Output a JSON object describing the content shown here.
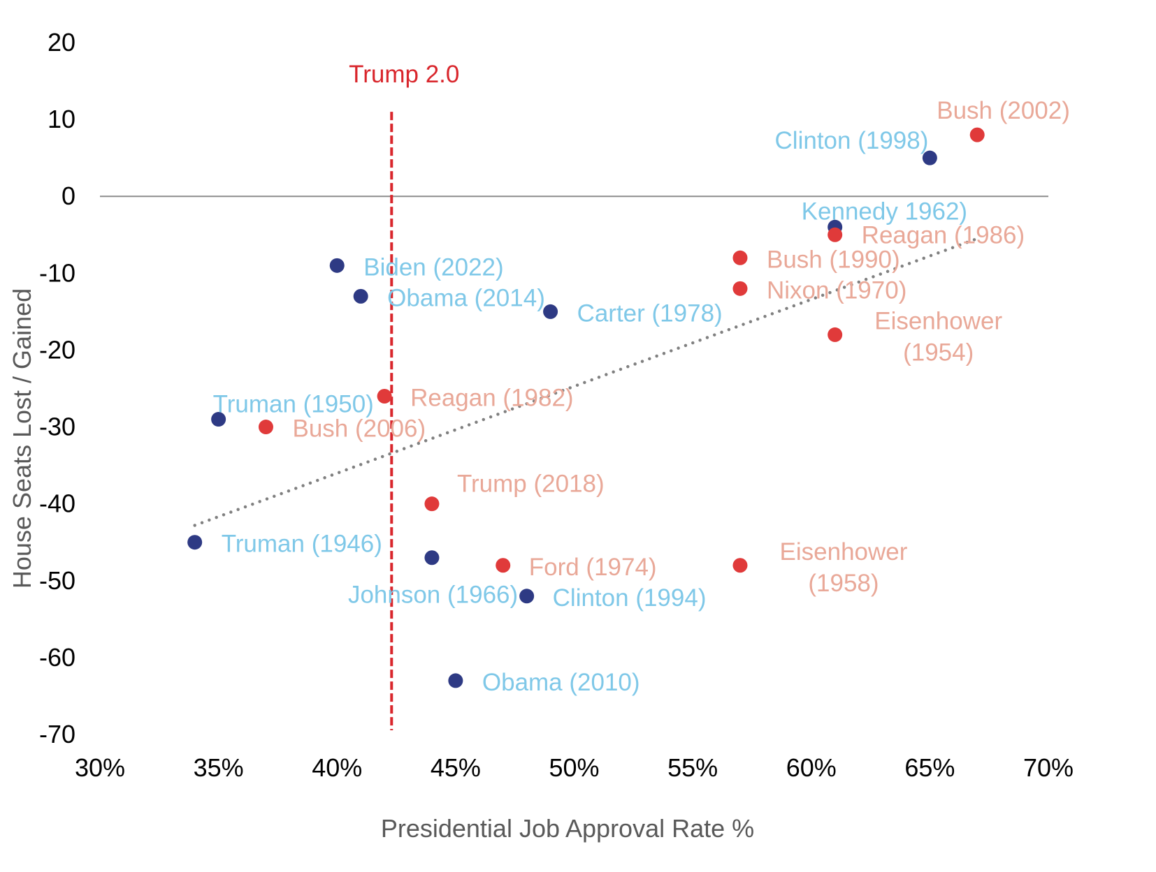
{
  "chart_data": {
    "type": "scatter",
    "title": "",
    "xlabel": "Presidential Job Approval Rate %",
    "ylabel": "House Seats Lost / Gained",
    "xlim": [
      0.3,
      0.7
    ],
    "ylim": [
      -70,
      20
    ],
    "x_ticks": [
      "30%",
      "35%",
      "40%",
      "45%",
      "50%",
      "55%",
      "60%",
      "65%",
      "70%"
    ],
    "y_ticks": [
      "20",
      "10",
      "0",
      "-10",
      "-20",
      "-30",
      "-40",
      "-50",
      "-60",
      "-70"
    ],
    "grid": false,
    "legend": "none",
    "colors": {
      "democrat_point": "#2e3a84",
      "democrat_label": "#7fc8e8",
      "republican_point": "#e03a3a",
      "republican_label": "#e9a898",
      "reference_line": "#d9262c",
      "trendline": "#808080",
      "zero_line": "#8c8c8c"
    },
    "series": [
      {
        "party": "democrat",
        "points": [
          {
            "label": "Clinton (1998)",
            "x": 0.65,
            "y": 5
          },
          {
            "label": "Kennedy 1962)",
            "x": 0.61,
            "y": -4
          },
          {
            "label": "Biden (2022)",
            "x": 0.4,
            "y": -9
          },
          {
            "label": "Obama (2014)",
            "x": 0.41,
            "y": -13
          },
          {
            "label": "Carter (1978)",
            "x": 0.49,
            "y": -15
          },
          {
            "label": "Truman (1950)",
            "x": 0.35,
            "y": -29
          },
          {
            "label": "Truman (1946)",
            "x": 0.34,
            "y": -45
          },
          {
            "label": "Johnson (1966)",
            "x": 0.44,
            "y": -47
          },
          {
            "label": "Clinton (1994)",
            "x": 0.48,
            "y": -52
          },
          {
            "label": "Obama (2010)",
            "x": 0.45,
            "y": -63
          }
        ]
      },
      {
        "party": "republican",
        "points": [
          {
            "label": "Bush (2002)",
            "x": 0.67,
            "y": 8
          },
          {
            "label": "Reagan (1986)",
            "x": 0.61,
            "y": -5
          },
          {
            "label": "Bush (1990)",
            "x": 0.57,
            "y": -8
          },
          {
            "label": "Nixon (1970)",
            "x": 0.57,
            "y": -12
          },
          {
            "label": "Eisenhower (1954)",
            "label_lines": [
              "Eisenhower",
              "(1954)"
            ],
            "x": 0.61,
            "y": -18
          },
          {
            "label": "Reagan (1982)",
            "x": 0.42,
            "y": -26
          },
          {
            "label": "Bush (2006)",
            "x": 0.37,
            "y": -30
          },
          {
            "label": "Trump (2018)",
            "x": 0.44,
            "y": -40
          },
          {
            "label": "Ford (1974)",
            "x": 0.47,
            "y": -48
          },
          {
            "label": "Eisenhower (1958)",
            "label_lines": [
              "Eisenhower",
              "(1958)"
            ],
            "x": 0.57,
            "y": -48
          }
        ]
      }
    ],
    "reference_line": {
      "label": "Trump 2.0",
      "x": 0.423,
      "y_range": [
        -70,
        11
      ]
    },
    "trendline": {
      "style": "dotted",
      "x": [
        0.34,
        0.67
      ],
      "y": [
        -42.8,
        -5.5
      ]
    }
  }
}
